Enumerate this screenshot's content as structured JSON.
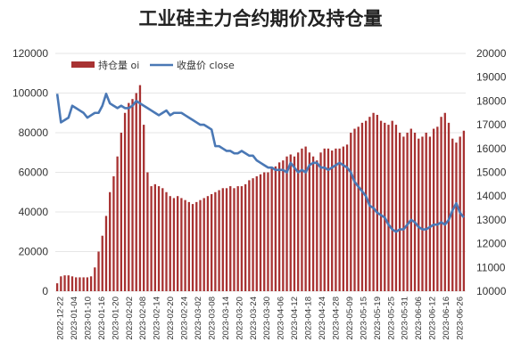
{
  "chart_data": {
    "type": "bar+line",
    "title": "工业硅主力合约期价及持仓量",
    "x_tick_labels": [
      "2022-12-22",
      "2023-01-04",
      "2023-01-10",
      "2023-01-16",
      "2023-01-20",
      "2023-02-02",
      "2023-02-08",
      "2023-02-14",
      "2023-02-20",
      "2023-02-24",
      "2023-03-02",
      "2023-03-08",
      "2023-03-14",
      "2023-03-20",
      "2023-03-24",
      "2023-03-30",
      "2023-04-06",
      "2023-04-12",
      "2023-04-18",
      "2023-04-24",
      "2023-04-28",
      "2023-05-09",
      "2023-05-15",
      "2023-05-19",
      "2023-05-25",
      "2023-05-31",
      "2023-06-06",
      "2023-06-12",
      "2023-06-16",
      "2023-06-26"
    ],
    "left_axis": {
      "min": 0,
      "max": 120000,
      "step": 20000,
      "ticks": [
        "0",
        "20000",
        "40000",
        "60000",
        "80000",
        "100000",
        "120000"
      ]
    },
    "right_axis": {
      "min": 10000,
      "max": 20000,
      "step": 1000,
      "ticks": [
        "10000",
        "11000",
        "12000",
        "13000",
        "14000",
        "15000",
        "16000",
        "17000",
        "18000",
        "19000",
        "20000"
      ]
    },
    "legend": {
      "position": "top-left",
      "entries": [
        "持仓量 oi",
        "收盘价 close"
      ]
    },
    "series": [
      {
        "name": "持仓量 oi",
        "type": "bar",
        "axis": "left",
        "color": "#a83232",
        "values": [
          4000,
          7500,
          8000,
          8000,
          7500,
          7000,
          7000,
          7000,
          7000,
          7500,
          12000,
          20000,
          28000,
          38000,
          50000,
          58000,
          68000,
          80000,
          90000,
          95000,
          97000,
          100000,
          104000,
          84000,
          60000,
          53000,
          54000,
          53000,
          52000,
          50000,
          48000,
          47000,
          48000,
          47000,
          46000,
          45000,
          44000,
          45000,
          46000,
          47000,
          48000,
          49000,
          50000,
          51000,
          52000,
          52000,
          53000,
          52000,
          53000,
          53000,
          54000,
          56000,
          57000,
          58000,
          59000,
          60000,
          60000,
          62000,
          63000,
          65000,
          66000,
          68000,
          69000,
          68000,
          70000,
          72000,
          73000,
          70000,
          68000,
          66000,
          70000,
          72000,
          72000,
          71000,
          72000,
          72000,
          73000,
          74000,
          80000,
          82000,
          83000,
          85000,
          86000,
          88000,
          90000,
          89000,
          86000,
          85000,
          84000,
          86000,
          84000,
          80000,
          78000,
          80000,
          82000,
          80000,
          77000,
          78000,
          80000,
          78000,
          82000,
          83000,
          88000,
          90000,
          85000,
          77000,
          75000,
          78000,
          81000
        ]
      },
      {
        "name": "收盘价 close",
        "type": "line",
        "axis": "right",
        "color": "#4a78b5",
        "values": [
          18300,
          17100,
          17200,
          17300,
          17800,
          17700,
          17600,
          17500,
          17300,
          17400,
          17500,
          17500,
          17800,
          18300,
          17900,
          17800,
          17700,
          17800,
          17700,
          17700,
          17800,
          18000,
          17900,
          17800,
          17700,
          17600,
          17500,
          17400,
          17500,
          17600,
          17400,
          17500,
          17500,
          17500,
          17400,
          17300,
          17200,
          17100,
          17000,
          17000,
          16900,
          16800,
          16100,
          16100,
          16000,
          15900,
          15900,
          15800,
          15800,
          15900,
          15800,
          15700,
          15700,
          15500,
          15400,
          15300,
          15200,
          15200,
          15100,
          15100,
          15100,
          15000,
          15400,
          15200,
          15000,
          15100,
          15000,
          15300,
          15400,
          15400,
          15200,
          15200,
          15100,
          15200,
          15300,
          15400,
          15300,
          15200,
          15000,
          14600,
          14400,
          14200,
          14000,
          13600,
          13500,
          13300,
          13200,
          13100,
          12800,
          12600,
          12500,
          12600,
          12600,
          12800,
          13000,
          12900,
          12700,
          12600,
          12600,
          12700,
          12800,
          12800,
          12900,
          12800,
          13000,
          13400,
          13700,
          13300,
          13100
        ]
      }
    ]
  }
}
